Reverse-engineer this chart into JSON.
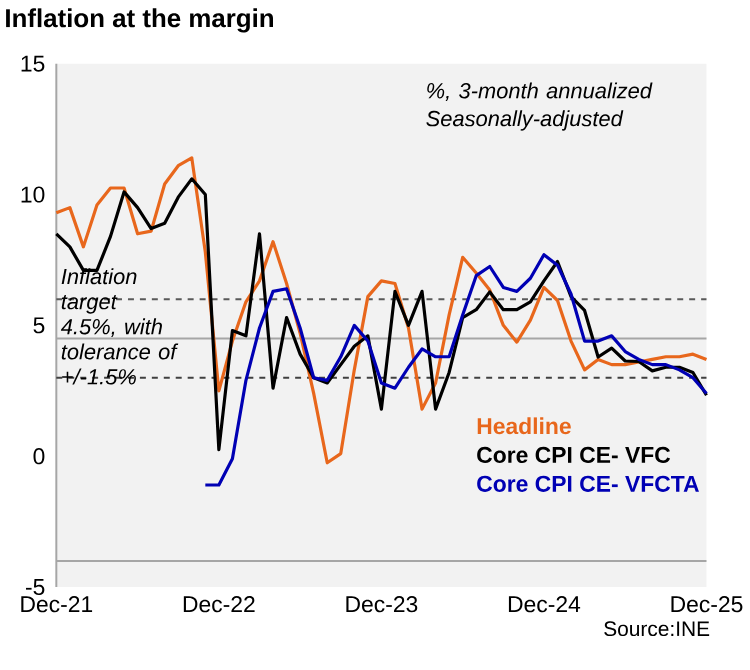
{
  "chart_data": {
    "type": "line",
    "title": "Inflation at the margin",
    "subtitle": "%, 3-month annualized Seasonally-adjusted",
    "x": [
      "2021-12",
      "2022-01",
      "2022-02",
      "2022-03",
      "2022-04",
      "2022-05",
      "2022-06",
      "2022-07",
      "2022-08",
      "2022-09",
      "2022-10",
      "2022-11",
      "2022-12",
      "2023-01",
      "2023-02",
      "2023-03",
      "2023-04",
      "2023-05",
      "2023-06",
      "2023-07",
      "2023-08",
      "2023-09",
      "2023-10",
      "2023-11",
      "2023-12",
      "2024-01",
      "2024-02",
      "2024-03",
      "2024-04",
      "2024-05",
      "2024-06",
      "2024-07",
      "2024-08",
      "2024-09",
      "2024-10",
      "2024-11",
      "2024-12",
      "2025-01",
      "2025-02",
      "2025-03",
      "2025-04",
      "2025-05",
      "2025-06",
      "2025-07",
      "2025-08",
      "2025-09",
      "2025-10",
      "2025-11",
      "2025-12"
    ],
    "series": [
      {
        "name": "Headline",
        "color": "#e8671c",
        "values": [
          9.3,
          9.5,
          8.0,
          9.6,
          10.25,
          10.25,
          8.5,
          8.6,
          10.4,
          11.1,
          11.4,
          7.8,
          2.5,
          4.4,
          5.9,
          6.7,
          8.2,
          6.6,
          4.7,
          2.4,
          -0.25,
          0.1,
          3.3,
          6.1,
          6.7,
          6.6,
          4.9,
          1.8,
          2.8,
          5.4,
          7.6,
          7.0,
          6.35,
          5.0,
          4.36,
          5.2,
          6.45,
          5.95,
          4.4,
          3.3,
          3.7,
          3.5,
          3.5,
          3.6,
          3.7,
          3.8,
          3.8,
          3.9,
          3.7
        ]
      },
      {
        "name": "Core CPI CE- VFC",
        "color": "#000000",
        "values": [
          8.5,
          8.0,
          7.1,
          7.1,
          8.4,
          10.1,
          9.5,
          8.7,
          8.9,
          9.9,
          10.6,
          10.0,
          0.25,
          4.8,
          4.6,
          8.5,
          2.6,
          5.3,
          3.9,
          3.0,
          2.8,
          3.5,
          4.2,
          4.6,
          1.8,
          6.3,
          5.0,
          6.3,
          1.8,
          3.2,
          5.3,
          5.6,
          6.28,
          5.6,
          5.6,
          5.9,
          6.7,
          7.44,
          6.1,
          5.57,
          3.79,
          4.13,
          3.64,
          3.62,
          3.26,
          3.4,
          3.4,
          3.2,
          2.33
        ]
      },
      {
        "name": "Core CPI CE- VFCTA",
        "color": "#0000b4",
        "values": [
          null,
          null,
          null,
          null,
          null,
          null,
          null,
          null,
          null,
          null,
          null,
          -1.1,
          -1.1,
          -0.1,
          2.9,
          4.9,
          6.3,
          6.4,
          4.9,
          3.0,
          2.9,
          3.8,
          5.0,
          4.4,
          2.8,
          2.6,
          3.4,
          4.1,
          3.8,
          3.8,
          5.4,
          6.9,
          7.25,
          6.45,
          6.3,
          6.8,
          7.7,
          7.3,
          6.2,
          4.4,
          4.4,
          4.6,
          4.0,
          3.7,
          3.5,
          3.5,
          3.3,
          3.0,
          2.4
        ]
      }
    ],
    "xlim": [
      "2021-12",
      "2025-12"
    ],
    "xticks": [
      {
        "value": "2021-12",
        "label": "Dec-21"
      },
      {
        "value": "2022-12",
        "label": "Dec-22"
      },
      {
        "value": "2023-12",
        "label": "Dec-23"
      },
      {
        "value": "2024-12",
        "label": "Dec-24"
      },
      {
        "value": "2025-12",
        "label": "Dec-25"
      }
    ],
    "ylim": [
      -5,
      15
    ],
    "yticks": [
      -5,
      0,
      5,
      10,
      15
    ],
    "ref_lines": [
      {
        "axis": "y",
        "value": 6,
        "color": "#595959",
        "line_style": "dashed"
      },
      {
        "axis": "y",
        "value": 4.5,
        "color": "#a6a6a6",
        "line_style": "solid",
        "label": "Inflation target 4.5%, with tolerance of +/-1.5%"
      },
      {
        "axis": "y",
        "value": 3,
        "color": "#404040",
        "line_style": "dashed"
      },
      {
        "axis": "y",
        "value": -4,
        "color": "#a6a6a6",
        "line_style": "solid"
      }
    ],
    "annotations": [
      "Source:INE"
    ],
    "legend": "bottom right",
    "grid": false,
    "marker": "none",
    "line_style": "solid"
  }
}
